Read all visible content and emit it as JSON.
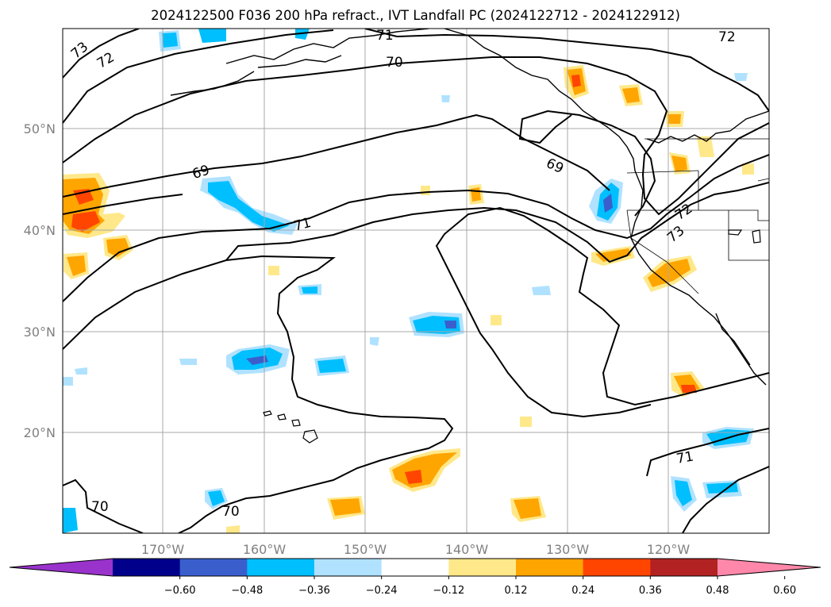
{
  "title": "2024122500 F036 200 hPa refract., IVT Landfall PC (2024122712 - 2024122912)",
  "lat_labels": [
    "50°N",
    "40°N",
    "30°N",
    "20°N"
  ],
  "lon_labels": [
    "170°W",
    "160°W",
    "150°W",
    "140°W",
    "130°W",
    "120°W"
  ],
  "contour_labels": [
    "73",
    "72",
    "71",
    "70",
    "72",
    "69",
    "71",
    "69",
    "72",
    "73",
    "71",
    "70",
    "70"
  ],
  "colorbar": {
    "colors": [
      "#9933cc",
      "#00008b",
      "#3a5fcd",
      "#00bfff",
      "#b0e2ff",
      "#ffffff",
      "#ffe88a",
      "#ffa500",
      "#ff4500",
      "#b22222",
      "#ff88aa"
    ],
    "ticks": [
      "−0.60",
      "−0.48",
      "−0.36",
      "−0.24",
      "−0.12",
      "0.12",
      "0.24",
      "0.36",
      "0.48",
      "0.60"
    ],
    "extend": "both"
  },
  "colors": {
    "ocean": "#ffffff",
    "grid": "#a9a9a9",
    "contour": "#000000",
    "axis_label": "#808080"
  }
}
